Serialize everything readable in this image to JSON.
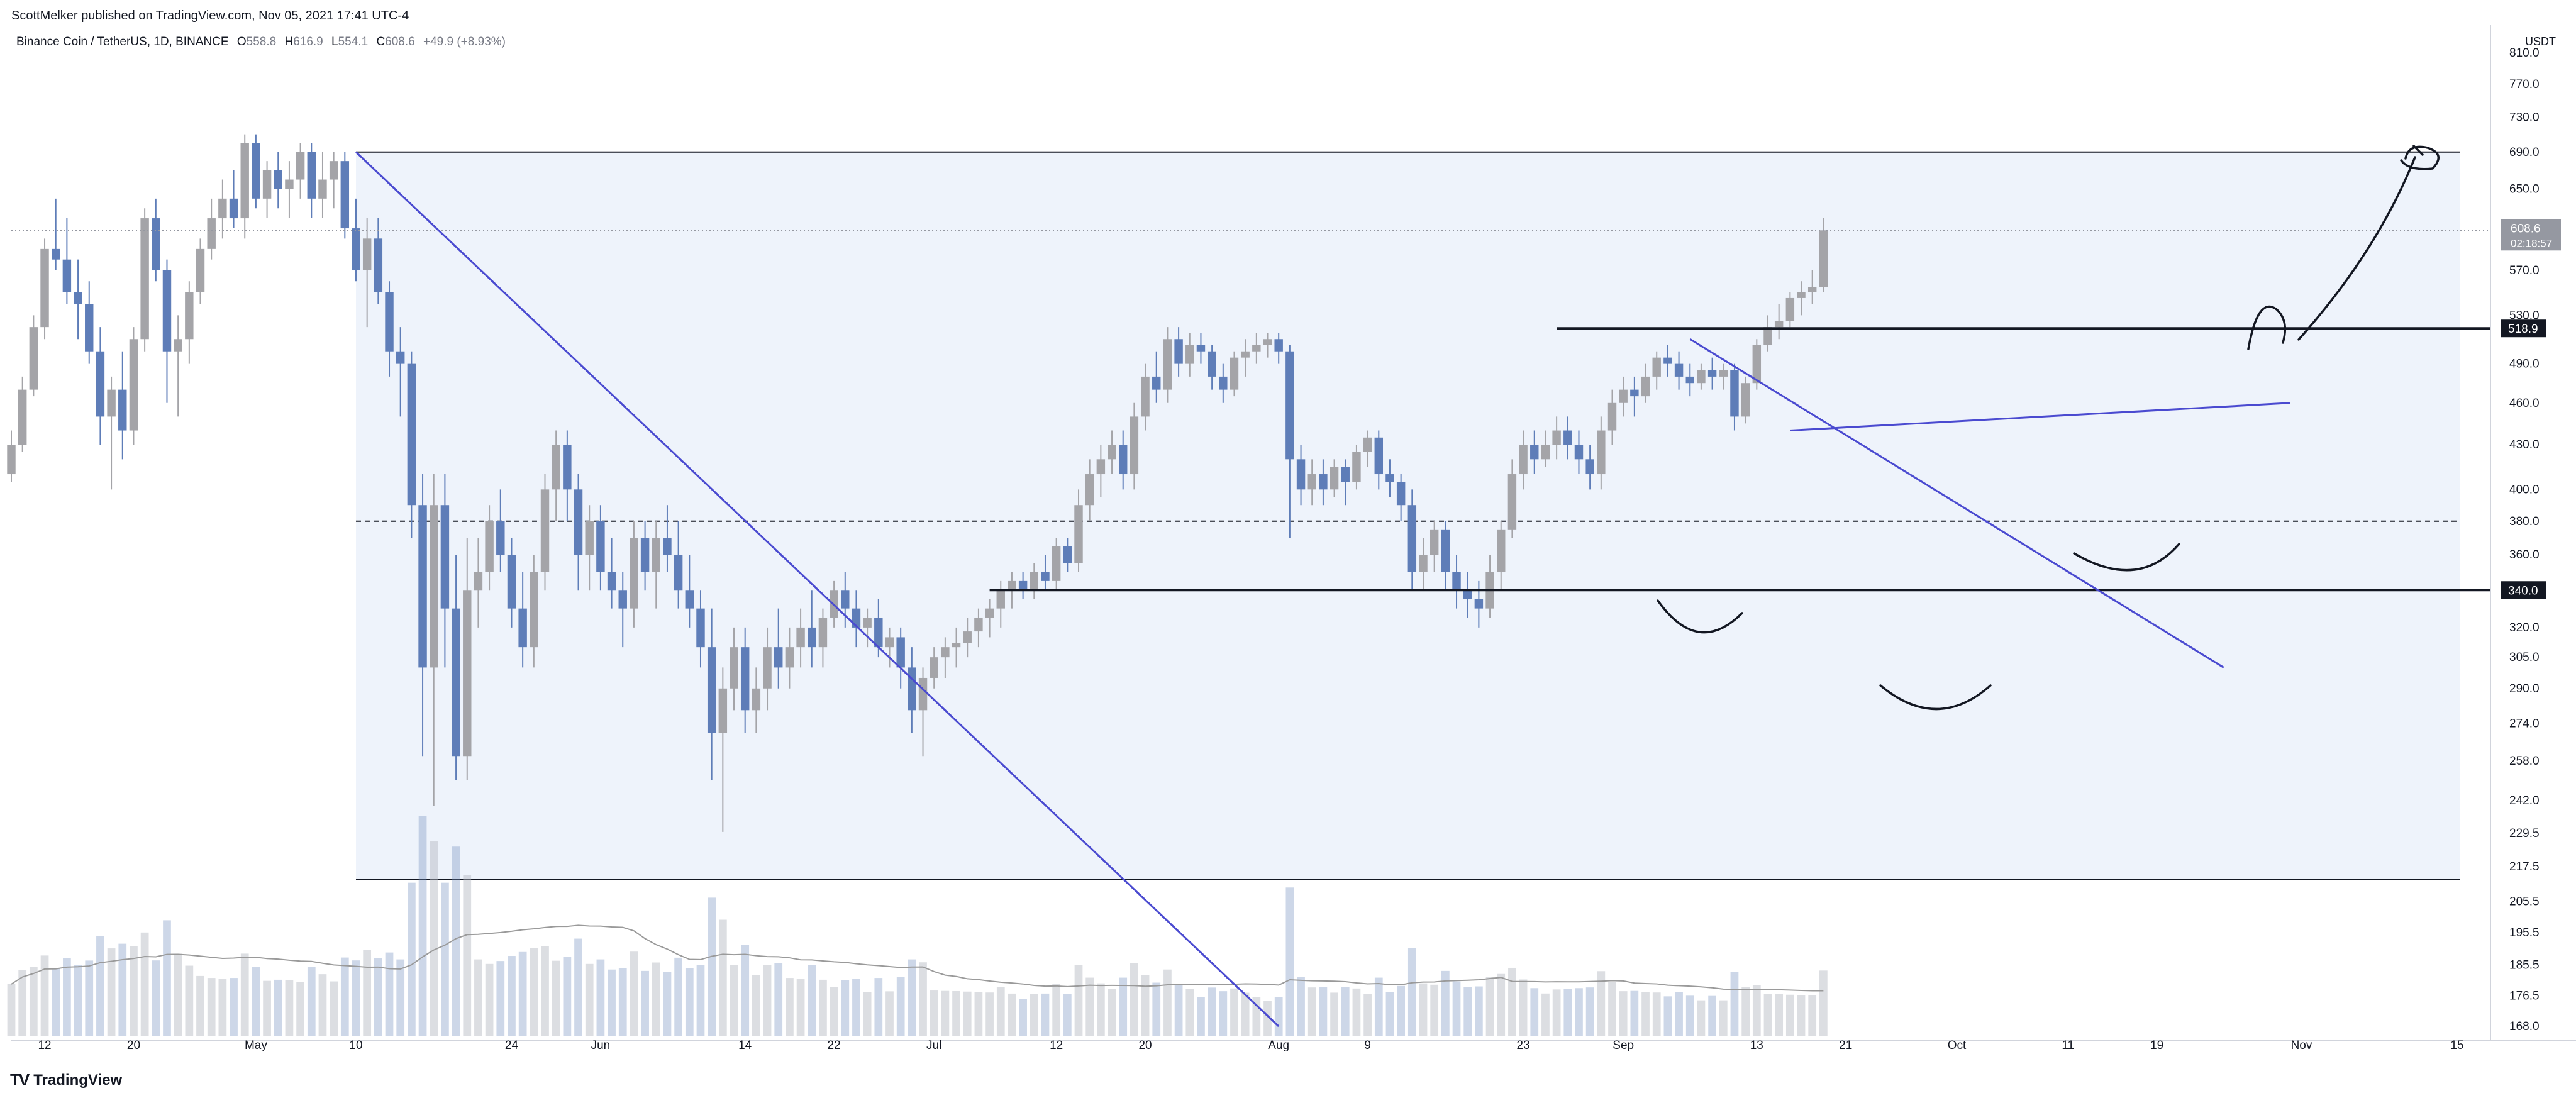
{
  "header": {
    "published": "ScottMelker published on TradingView.com, Nov 05, 2021 17:41 UTC-4"
  },
  "legend": {
    "symbol": "Binance Coin / TetherUS, 1D, BINANCE",
    "open_label": "O",
    "open": "558.8",
    "high_label": "H",
    "high": "616.9",
    "low_label": "L",
    "low": "554.1",
    "close_label": "C",
    "close": "608.6",
    "change": "+49.9 (+8.93%)"
  },
  "footer": {
    "brand": "TradingView",
    "logo": "TV"
  },
  "price_axis": {
    "currency": "USDT",
    "labels": [
      "810.0",
      "770.0",
      "730.0",
      "690.0",
      "650.0",
      "610.0",
      "570.0",
      "530.0",
      "490.0",
      "460.0",
      "430.0",
      "400.0",
      "380.0",
      "360.0",
      "340.0",
      "320.0",
      "305.0",
      "290.0",
      "274.0",
      "258.0",
      "242.0",
      "229.5",
      "217.5",
      "205.5",
      "195.5",
      "185.5",
      "176.5",
      "168.0"
    ],
    "last_price": "608.6",
    "countdown": "02:18:57",
    "marker_518": "518.9",
    "marker_340": "340.0"
  },
  "time_axis": {
    "labels": [
      "12",
      "20",
      "May",
      "10",
      "24",
      "Jun",
      "14",
      "22",
      "Jul",
      "12",
      "20",
      "Aug",
      "9",
      "23",
      "Sep",
      "13",
      "21",
      "Oct",
      "11",
      "19",
      "Nov",
      "15"
    ]
  },
  "chart_data": {
    "type": "candlestick",
    "symbol": "Binance Coin / TetherUS",
    "interval": "1D",
    "exchange": "BINANCE",
    "y_scale": "log",
    "ylim": [
      168,
      830
    ],
    "x_range": [
      "2021-04-09",
      "2021-11-18"
    ],
    "x_ticks": [
      "2021-04-12",
      "2021-04-20",
      "2021-05-01",
      "2021-05-10",
      "2021-05-24",
      "2021-06-01",
      "2021-06-14",
      "2021-06-22",
      "2021-07-01",
      "2021-07-12",
      "2021-07-20",
      "2021-08-01",
      "2021-08-09",
      "2021-08-23",
      "2021-09-01",
      "2021-09-13",
      "2021-09-21",
      "2021-10-01",
      "2021-10-11",
      "2021-10-19",
      "2021-11-01",
      "2021-11-15"
    ],
    "start_date": "2021-04-09",
    "candles": [
      [
        410,
        440,
        405,
        430
      ],
      [
        430,
        480,
        425,
        470
      ],
      [
        470,
        530,
        465,
        520
      ],
      [
        520,
        600,
        510,
        590
      ],
      [
        590,
        640,
        570,
        580
      ],
      [
        580,
        620,
        540,
        550
      ],
      [
        550,
        580,
        510,
        540
      ],
      [
        540,
        560,
        490,
        500
      ],
      [
        500,
        520,
        430,
        450
      ],
      [
        450,
        480,
        400,
        470
      ],
      [
        470,
        500,
        420,
        440
      ],
      [
        440,
        520,
        430,
        510
      ],
      [
        510,
        630,
        500,
        620
      ],
      [
        620,
        640,
        560,
        570
      ],
      [
        570,
        580,
        460,
        500
      ],
      [
        500,
        530,
        450,
        510
      ],
      [
        510,
        560,
        490,
        550
      ],
      [
        550,
        600,
        540,
        590
      ],
      [
        590,
        640,
        580,
        620
      ],
      [
        620,
        660,
        600,
        640
      ],
      [
        640,
        670,
        610,
        620
      ],
      [
        620,
        710,
        600,
        700
      ],
      [
        700,
        710,
        630,
        640
      ],
      [
        640,
        680,
        620,
        670
      ],
      [
        670,
        690,
        630,
        650
      ],
      [
        650,
        680,
        620,
        660
      ],
      [
        660,
        700,
        640,
        690
      ],
      [
        690,
        700,
        620,
        640
      ],
      [
        640,
        690,
        620,
        660
      ],
      [
        660,
        690,
        630,
        680
      ],
      [
        680,
        690,
        600,
        610
      ],
      [
        610,
        640,
        560,
        570
      ],
      [
        570,
        620,
        520,
        600
      ],
      [
        600,
        620,
        540,
        550
      ],
      [
        550,
        560,
        480,
        500
      ],
      [
        500,
        520,
        450,
        490
      ],
      [
        490,
        500,
        370,
        390
      ],
      [
        390,
        410,
        260,
        300
      ],
      [
        300,
        410,
        240,
        390
      ],
      [
        390,
        410,
        300,
        330
      ],
      [
        330,
        360,
        250,
        260
      ],
      [
        260,
        370,
        250,
        340
      ],
      [
        340,
        370,
        320,
        350
      ],
      [
        350,
        390,
        340,
        380
      ],
      [
        380,
        400,
        350,
        360
      ],
      [
        360,
        370,
        320,
        330
      ],
      [
        330,
        350,
        300,
        310
      ],
      [
        310,
        360,
        300,
        350
      ],
      [
        350,
        410,
        340,
        400
      ],
      [
        400,
        440,
        380,
        430
      ],
      [
        430,
        440,
        380,
        400
      ],
      [
        400,
        410,
        340,
        360
      ],
      [
        360,
        390,
        340,
        380
      ],
      [
        380,
        390,
        340,
        350
      ],
      [
        350,
        370,
        330,
        340
      ],
      [
        340,
        350,
        310,
        330
      ],
      [
        330,
        380,
        320,
        370
      ],
      [
        370,
        380,
        340,
        350
      ],
      [
        350,
        380,
        330,
        370
      ],
      [
        370,
        390,
        350,
        360
      ],
      [
        360,
        380,
        330,
        340
      ],
      [
        340,
        360,
        320,
        330
      ],
      [
        330,
        340,
        300,
        310
      ],
      [
        310,
        330,
        250,
        270
      ],
      [
        270,
        300,
        230,
        290
      ],
      [
        290,
        320,
        280,
        310
      ],
      [
        310,
        320,
        270,
        280
      ],
      [
        280,
        300,
        270,
        290
      ],
      [
        290,
        320,
        280,
        310
      ],
      [
        310,
        330,
        290,
        300
      ],
      [
        300,
        320,
        290,
        310
      ],
      [
        310,
        330,
        300,
        320
      ],
      [
        320,
        340,
        300,
        310
      ],
      [
        310,
        330,
        300,
        325
      ],
      [
        325,
        345,
        320,
        340
      ],
      [
        340,
        350,
        320,
        330
      ],
      [
        330,
        340,
        310,
        320
      ],
      [
        320,
        330,
        310,
        325
      ],
      [
        325,
        335,
        305,
        310
      ],
      [
        310,
        320,
        300,
        315
      ],
      [
        315,
        320,
        290,
        300
      ],
      [
        300,
        310,
        270,
        280
      ],
      [
        280,
        300,
        260,
        295
      ],
      [
        295,
        310,
        290,
        305
      ],
      [
        305,
        315,
        295,
        310
      ],
      [
        310,
        320,
        300,
        312
      ],
      [
        312,
        325,
        305,
        318
      ],
      [
        318,
        330,
        310,
        325
      ],
      [
        325,
        335,
        315,
        330
      ],
      [
        330,
        345,
        320,
        340
      ],
      [
        340,
        350,
        330,
        345
      ],
      [
        345,
        350,
        335,
        340
      ],
      [
        340,
        355,
        335,
        350
      ],
      [
        350,
        360,
        340,
        345
      ],
      [
        345,
        370,
        340,
        365
      ],
      [
        365,
        370,
        350,
        355
      ],
      [
        355,
        400,
        350,
        390
      ],
      [
        390,
        420,
        380,
        410
      ],
      [
        410,
        430,
        395,
        420
      ],
      [
        420,
        440,
        410,
        430
      ],
      [
        430,
        440,
        400,
        410
      ],
      [
        410,
        460,
        400,
        450
      ],
      [
        450,
        490,
        440,
        480
      ],
      [
        480,
        500,
        460,
        470
      ],
      [
        470,
        520,
        460,
        510
      ],
      [
        510,
        520,
        480,
        490
      ],
      [
        490,
        515,
        480,
        505
      ],
      [
        505,
        515,
        490,
        500
      ],
      [
        500,
        505,
        470,
        480
      ],
      [
        480,
        490,
        460,
        470
      ],
      [
        470,
        500,
        465,
        495
      ],
      [
        495,
        510,
        480,
        500
      ],
      [
        500,
        515,
        490,
        505
      ],
      [
        505,
        515,
        495,
        510
      ],
      [
        510,
        515,
        490,
        500
      ],
      [
        500,
        505,
        370,
        420
      ],
      [
        420,
        430,
        390,
        400
      ],
      [
        400,
        420,
        390,
        410
      ],
      [
        410,
        420,
        390,
        400
      ],
      [
        400,
        420,
        395,
        415
      ],
      [
        415,
        420,
        390,
        405
      ],
      [
        405,
        430,
        400,
        425
      ],
      [
        425,
        440,
        415,
        435
      ],
      [
        435,
        440,
        400,
        410
      ],
      [
        410,
        420,
        395,
        405
      ],
      [
        405,
        410,
        380,
        390
      ],
      [
        390,
        400,
        340,
        350
      ],
      [
        350,
        370,
        340,
        360
      ],
      [
        360,
        380,
        350,
        375
      ],
      [
        375,
        380,
        340,
        350
      ],
      [
        350,
        360,
        330,
        340
      ],
      [
        340,
        350,
        325,
        335
      ],
      [
        335,
        345,
        320,
        330
      ],
      [
        330,
        360,
        325,
        350
      ],
      [
        350,
        380,
        340,
        375
      ],
      [
        375,
        420,
        370,
        410
      ],
      [
        410,
        440,
        400,
        430
      ],
      [
        430,
        440,
        410,
        420
      ],
      [
        420,
        440,
        415,
        430
      ],
      [
        430,
        450,
        420,
        440
      ],
      [
        440,
        450,
        420,
        430
      ],
      [
        430,
        440,
        410,
        420
      ],
      [
        420,
        430,
        400,
        410
      ],
      [
        410,
        450,
        400,
        440
      ],
      [
        440,
        470,
        430,
        460
      ],
      [
        460,
        480,
        450,
        470
      ],
      [
        470,
        480,
        450,
        465
      ],
      [
        465,
        490,
        460,
        480
      ],
      [
        480,
        500,
        470,
        495
      ],
      [
        495,
        505,
        480,
        490
      ],
      [
        490,
        500,
        470,
        480
      ],
      [
        480,
        490,
        465,
        475
      ],
      [
        475,
        490,
        470,
        485
      ],
      [
        485,
        495,
        470,
        480
      ],
      [
        480,
        490,
        470,
        485
      ],
      [
        485,
        490,
        440,
        450
      ],
      [
        450,
        480,
        445,
        475
      ],
      [
        475,
        510,
        470,
        505
      ],
      [
        505,
        530,
        500,
        520
      ],
      [
        520,
        540,
        510,
        525
      ],
      [
        525,
        550,
        520,
        545
      ],
      [
        545,
        560,
        530,
        550
      ],
      [
        550,
        570,
        540,
        555
      ],
      [
        555,
        620,
        550,
        608
      ]
    ],
    "horizontal_lines": [
      {
        "price": 690,
        "role": "range-top"
      },
      {
        "price": 518.9,
        "role": "resistance"
      },
      {
        "price": 380,
        "role": "mid-range",
        "style": "dashed"
      },
      {
        "price": 340,
        "role": "support"
      },
      {
        "price": 213,
        "role": "range-bottom"
      }
    ],
    "trendlines": [
      {
        "from": [
          "2021-05-10",
          690
        ],
        "to": [
          "2021-08-01",
          168
        ]
      },
      {
        "from": [
          "2021-09-07",
          510
        ],
        "to": [
          "2021-10-25",
          300
        ]
      },
      {
        "from": [
          "2021-09-16",
          440
        ],
        "to": [
          "2021-10-31",
          460
        ]
      }
    ],
    "volume_ma": true,
    "legend": "top-left",
    "grid": false
  }
}
